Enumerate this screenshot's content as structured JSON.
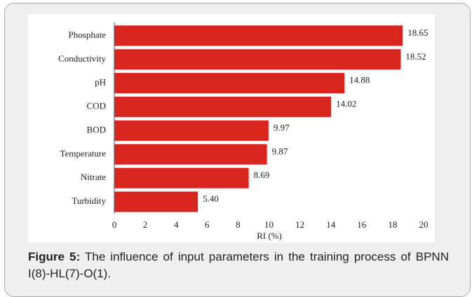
{
  "chart_data": {
    "type": "bar",
    "orientation": "horizontal",
    "categories": [
      "Phosphate",
      "Conductivity",
      "pH",
      "COD",
      "BOD",
      "Temperature",
      "Nitrate",
      "Turbidity"
    ],
    "values": [
      18.65,
      18.52,
      14.88,
      14.02,
      9.97,
      9.87,
      8.69,
      5.4
    ],
    "value_labels": [
      "18.65",
      "18.52",
      "14.88",
      "14.02",
      "9.97",
      "9.87",
      "8.69",
      "5.40"
    ],
    "color": "#d8261e",
    "xlabel": "RI (%)",
    "xlim": [
      0,
      20
    ],
    "xticks": [
      0,
      2,
      4,
      6,
      8,
      10,
      12,
      14,
      16,
      18,
      20
    ]
  },
  "caption": {
    "label": "Figure 5:",
    "text": "The influence of input parameters in the training process of BPNN I(8)-HL(7)-O(1)."
  }
}
